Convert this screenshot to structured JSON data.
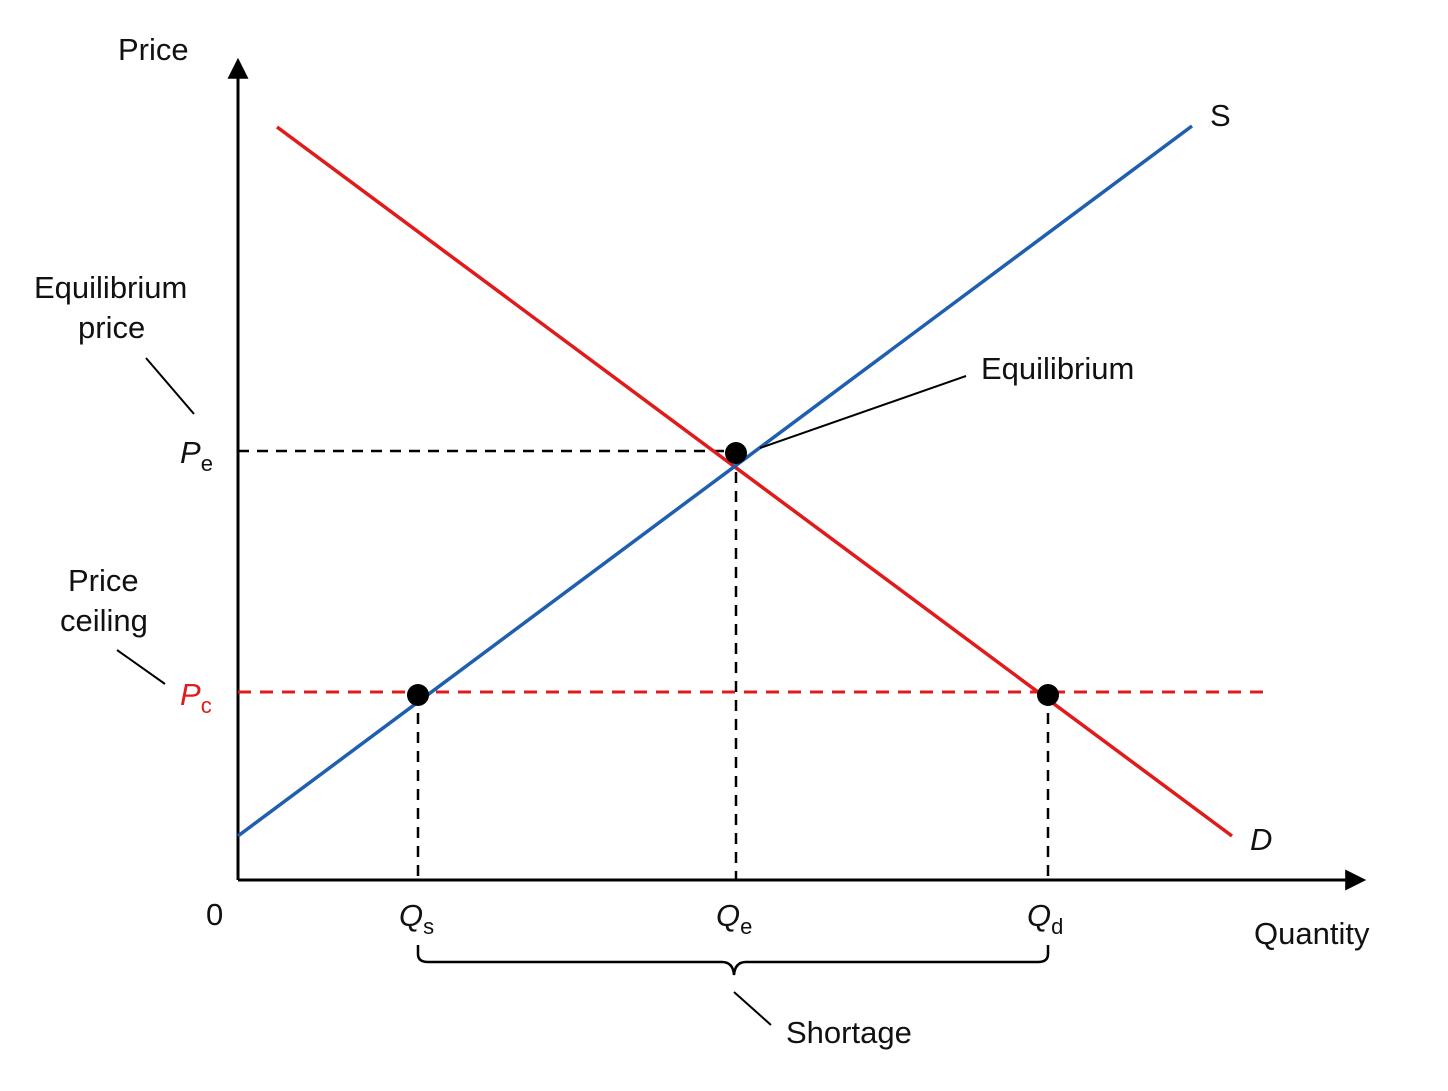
{
  "colors": {
    "axis": "#000000",
    "supply": "#1f5fb0",
    "demand": "#e01b1b",
    "ceiling": "#e01b1b",
    "guide": "#000000"
  },
  "axes": {
    "y_label": "Price",
    "x_label": "Quantity",
    "origin": "0"
  },
  "curves": {
    "supply_label": "S",
    "demand_label": "D"
  },
  "price_ticks": {
    "equilibrium": {
      "symbol": "P",
      "sub": "e"
    },
    "ceiling": {
      "symbol": "P",
      "sub": "c"
    }
  },
  "quantity_ticks": {
    "supplied": {
      "symbol": "Q",
      "sub": "s"
    },
    "equilibrium": {
      "symbol": "Q",
      "sub": "e"
    },
    "demanded": {
      "symbol": "Q",
      "sub": "d"
    }
  },
  "annotations": {
    "equilibrium_price_line1": "Equilibrium",
    "equilibrium_price_line2": "price",
    "price_ceiling_line1": "Price",
    "price_ceiling_line2": "ceiling",
    "equilibrium_point": "Equilibrium",
    "shortage": "Shortage"
  }
}
